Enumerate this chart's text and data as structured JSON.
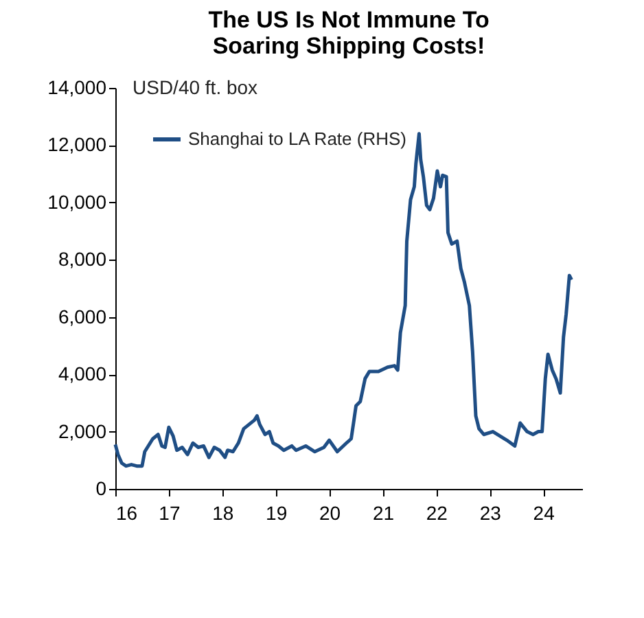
{
  "chart_data": {
    "type": "line",
    "title": [
      "The US Is Not Immune To",
      "Soaring Shipping Costs!"
    ],
    "ylabel": "USD/40 ft. box",
    "xlim": [
      16,
      24.73
    ],
    "xticks": [
      16,
      17,
      18,
      19,
      20,
      21,
      22,
      23,
      24
    ],
    "ylim": [
      0,
      14000
    ],
    "yticks": [
      0,
      {
        "value": 2000,
        "label": "2,000"
      },
      {
        "value": 4000,
        "label": "4,000"
      },
      {
        "value": 6000,
        "label": "6,000"
      },
      {
        "value": 8000,
        "label": "8,000"
      },
      {
        "value": 10000,
        "label": "10,000"
      },
      {
        "value": 12000,
        "label": "12,000"
      },
      {
        "value": 14000,
        "label": "14,000"
      }
    ],
    "legend": "top left",
    "grid": false,
    "series": [
      {
        "name": "Shanghai to LA Rate (RHS)",
        "color": "#1f4e85",
        "x": [
          16.0,
          16.05,
          16.12,
          16.2,
          16.3,
          16.4,
          16.5,
          16.55,
          16.65,
          16.7,
          16.8,
          16.87,
          16.93,
          17.0,
          17.08,
          17.15,
          17.25,
          17.35,
          17.45,
          17.55,
          17.65,
          17.75,
          17.85,
          17.95,
          18.05,
          18.1,
          18.2,
          18.3,
          18.4,
          18.5,
          18.6,
          18.65,
          18.7,
          18.8,
          18.88,
          18.95,
          19.05,
          19.15,
          19.3,
          19.38,
          19.56,
          19.73,
          19.9,
          20.0,
          20.15,
          20.32,
          20.41,
          20.45,
          20.5,
          20.58,
          20.67,
          20.75,
          20.92,
          21.09,
          21.22,
          21.28,
          21.33,
          21.42,
          21.45,
          21.52,
          21.59,
          21.62,
          21.68,
          21.71,
          21.76,
          21.82,
          21.88,
          21.95,
          22.02,
          22.08,
          22.12,
          22.19,
          22.22,
          22.29,
          22.39,
          22.46,
          22.53,
          22.62,
          22.68,
          22.74,
          22.8,
          22.89,
          23.06,
          23.19,
          23.32,
          23.47,
          23.57,
          23.7,
          23.81,
          23.91,
          23.98,
          24.04,
          24.09,
          24.17,
          24.24,
          24.32,
          24.38,
          24.43,
          24.49,
          24.53
        ],
        "values": [
          1550,
          1200,
          900,
          800,
          850,
          800,
          800,
          1300,
          1600,
          1750,
          1900,
          1500,
          1450,
          2150,
          1850,
          1350,
          1450,
          1200,
          1600,
          1450,
          1500,
          1100,
          1450,
          1350,
          1100,
          1350,
          1300,
          1600,
          2100,
          2250,
          2400,
          2550,
          2250,
          1900,
          2000,
          1600,
          1500,
          1350,
          1500,
          1350,
          1500,
          1300,
          1450,
          1700,
          1300,
          1600,
          1750,
          2250,
          2900,
          3050,
          3850,
          4100,
          4100,
          4250,
          4300,
          4150,
          5450,
          6400,
          8650,
          10100,
          10550,
          11350,
          12400,
          11500,
          10900,
          9900,
          9750,
          10150,
          11100,
          10550,
          10950,
          10900,
          8950,
          8550,
          8650,
          7700,
          7200,
          6400,
          4800,
          2550,
          2100,
          1900,
          2000,
          1850,
          1700,
          1500,
          2300,
          2000,
          1900,
          2000,
          2000,
          3850,
          4700,
          4150,
          3850,
          3350,
          5300,
          6100,
          7450,
          7300
        ]
      }
    ]
  }
}
